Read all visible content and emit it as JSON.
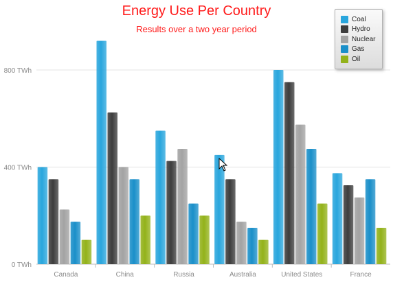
{
  "chart_data": {
    "type": "bar",
    "title": "Energy Use Per Country",
    "subtitle": "Results over a two year period",
    "categories": [
      "Canada",
      "China",
      "Russia",
      "Australia",
      "United States",
      "France"
    ],
    "series": [
      {
        "name": "Coal",
        "color": "#29a6dd",
        "values": [
          400,
          920,
          550,
          450,
          800,
          375
        ]
      },
      {
        "name": "Hydro",
        "color": "#3d3d3d",
        "values": [
          350,
          625,
          425,
          350,
          750,
          325
        ]
      },
      {
        "name": "Nuclear",
        "color": "#a3a3a3",
        "values": [
          225,
          400,
          475,
          175,
          575,
          275
        ]
      },
      {
        "name": "Gas",
        "color": "#1a8fc9",
        "values": [
          175,
          350,
          250,
          150,
          475,
          350
        ]
      },
      {
        "name": "Oil",
        "color": "#93b21a",
        "values": [
          100,
          200,
          200,
          100,
          250,
          150
        ]
      }
    ],
    "y_ticks": [
      {
        "value": 0,
        "label": "0 TWh"
      },
      {
        "value": 400,
        "label": "400 TWh"
      },
      {
        "value": 800,
        "label": "800 TWh"
      }
    ],
    "ylim": [
      0,
      1000
    ],
    "grid": true,
    "legend": "top-right"
  }
}
